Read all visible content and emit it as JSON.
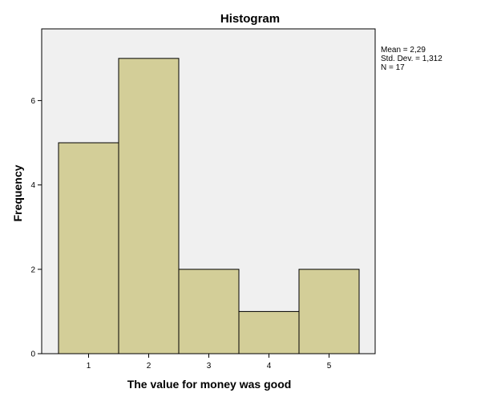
{
  "chart_data": {
    "type": "bar",
    "title": "Histogram",
    "xlabel": "The value for money was good",
    "ylabel": "Frequency",
    "categories": [
      "1",
      "2",
      "3",
      "4",
      "5"
    ],
    "values": [
      5,
      7,
      2,
      1,
      2
    ],
    "ylim": [
      0,
      7.7
    ],
    "yticks": [
      "0",
      "2",
      "4",
      "6"
    ],
    "grid": false,
    "colors": {
      "plot_background": "#f0f0f0",
      "bar_fill": "#d3ce98",
      "bar_stroke": "#000000"
    }
  },
  "stats": {
    "mean": "Mean = 2,29",
    "std_dev": "Std. Dev. = 1,312",
    "n": "N = 17"
  }
}
